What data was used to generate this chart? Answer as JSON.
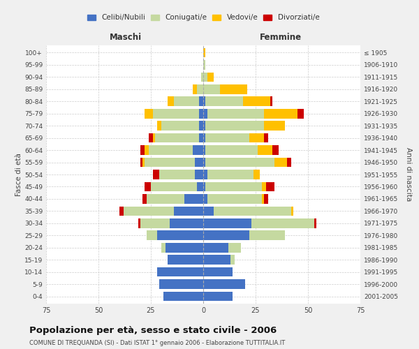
{
  "age_groups": [
    "0-4",
    "5-9",
    "10-14",
    "15-19",
    "20-24",
    "25-29",
    "30-34",
    "35-39",
    "40-44",
    "45-49",
    "50-54",
    "55-59",
    "60-64",
    "65-69",
    "70-74",
    "75-79",
    "80-84",
    "85-89",
    "90-94",
    "95-99",
    "100+"
  ],
  "birth_years": [
    "2001-2005",
    "1996-2000",
    "1991-1995",
    "1986-1990",
    "1981-1985",
    "1976-1980",
    "1971-1975",
    "1966-1970",
    "1961-1965",
    "1956-1960",
    "1951-1955",
    "1946-1950",
    "1941-1945",
    "1936-1940",
    "1931-1935",
    "1926-1930",
    "1921-1925",
    "1916-1920",
    "1911-1915",
    "1906-1910",
    "≤ 1905"
  ],
  "male": {
    "celibe": [
      19,
      21,
      22,
      17,
      18,
      22,
      16,
      14,
      9,
      3,
      4,
      4,
      5,
      2,
      2,
      2,
      2,
      0,
      0,
      0,
      0
    ],
    "coniugato": [
      0,
      0,
      0,
      0,
      2,
      5,
      14,
      24,
      18,
      22,
      17,
      24,
      21,
      21,
      18,
      22,
      12,
      3,
      1,
      0,
      0
    ],
    "vedovo": [
      0,
      0,
      0,
      0,
      0,
      0,
      0,
      0,
      0,
      0,
      0,
      1,
      2,
      1,
      2,
      4,
      3,
      2,
      0,
      0,
      0
    ],
    "divorziato": [
      0,
      0,
      0,
      0,
      0,
      0,
      1,
      2,
      2,
      3,
      3,
      1,
      2,
      2,
      0,
      0,
      0,
      0,
      0,
      0,
      0
    ]
  },
  "female": {
    "nubile": [
      14,
      20,
      14,
      13,
      12,
      22,
      23,
      5,
      2,
      1,
      2,
      1,
      1,
      1,
      1,
      2,
      1,
      0,
      0,
      0,
      0
    ],
    "coniugata": [
      0,
      0,
      0,
      2,
      6,
      17,
      30,
      37,
      26,
      27,
      22,
      33,
      25,
      21,
      28,
      27,
      18,
      8,
      2,
      1,
      0
    ],
    "vedova": [
      0,
      0,
      0,
      0,
      0,
      0,
      0,
      1,
      1,
      2,
      3,
      6,
      7,
      7,
      10,
      16,
      13,
      13,
      3,
      0,
      1
    ],
    "divorziata": [
      0,
      0,
      0,
      0,
      0,
      0,
      1,
      0,
      2,
      4,
      0,
      2,
      3,
      2,
      0,
      3,
      1,
      0,
      0,
      0,
      0
    ]
  },
  "colors": {
    "celibe": "#4472c4",
    "coniugato": "#c5d9a0",
    "vedovo": "#ffc000",
    "divorziato": "#cc0000"
  },
  "title": "Popolazione per età, sesso e stato civile - 2006",
  "subtitle": "COMUNE DI TREQUANDA (SI) - Dati ISTAT 1° gennaio 2006 - Elaborazione TUTTITALIA.IT",
  "xlabel_left": "Maschi",
  "xlabel_right": "Femmine",
  "ylabel_left": "Fasce di età",
  "ylabel_right": "Anni di nascita",
  "xlim": 75,
  "legend_labels": [
    "Celibi/Nubili",
    "Coniugati/e",
    "Vedovi/e",
    "Divorziati/e"
  ],
  "bg_color": "#f0f0f0",
  "plot_bg": "#ffffff",
  "grid_color": "#cccccc"
}
